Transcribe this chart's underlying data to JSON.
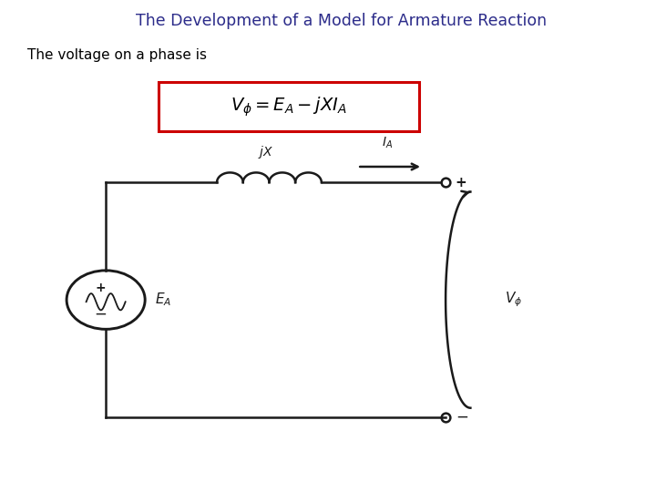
{
  "title": "The Development of a Model for Armature Reaction",
  "title_color": "#2c2c8a",
  "subtitle": "The voltage on a phase is",
  "formula": "$V_{\\phi} = E_A - jXI_A$",
  "formula_box_color": "#cc0000",
  "circuit_color": "#1a1a1a",
  "label_jX": "$jX$",
  "label_IA": "$I_A$",
  "label_EA": "$E_A$",
  "label_Vphi": "$V_{\\phi}$",
  "label_plus": "+",
  "label_minus": "−",
  "figsize": [
    7.2,
    5.4
  ],
  "dpi": 100
}
